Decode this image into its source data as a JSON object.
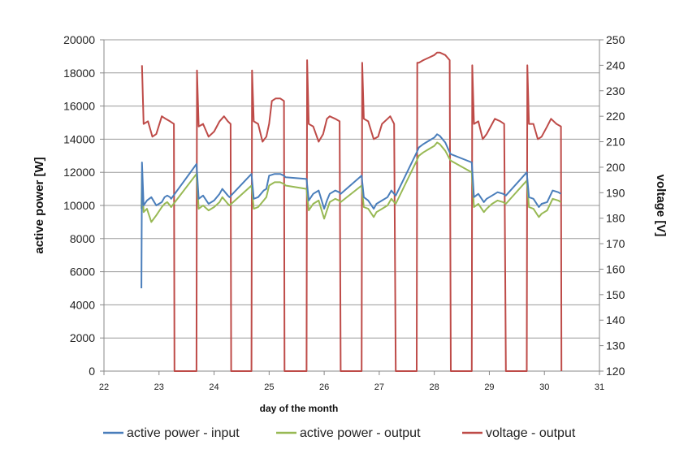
{
  "chart_data": {
    "type": "line",
    "title": "",
    "xlabel": "day of the month",
    "ylabel_left": "active power [W]",
    "ylabel_right": "voltage [V]",
    "xlim": [
      22,
      31
    ],
    "ylim_left": [
      0,
      20000
    ],
    "ylim_right": [
      120,
      250
    ],
    "x_ticks": [
      "22",
      "23",
      "24",
      "25",
      "26",
      "27",
      "28",
      "29",
      "30",
      "31"
    ],
    "y_ticks_left": [
      "0",
      "2000",
      "4000",
      "6000",
      "8000",
      "10000",
      "12000",
      "14000",
      "16000",
      "18000",
      "20000"
    ],
    "y_ticks_right": [
      "120",
      "130",
      "140",
      "150",
      "160",
      "170",
      "180",
      "190",
      "200",
      "210",
      "220",
      "230",
      "240",
      "250"
    ],
    "grid": "horizontal",
    "legend_position": "bottom",
    "series": [
      {
        "name": "active power - input",
        "color": "#4a7ebb",
        "axis": "left",
        "points": [
          [
            22.68,
            5000
          ],
          [
            22.69,
            12600
          ],
          [
            22.72,
            10000
          ],
          [
            22.78,
            10300
          ],
          [
            22.86,
            10500
          ],
          [
            22.95,
            10000
          ],
          [
            23.05,
            10200
          ],
          [
            23.1,
            10500
          ],
          [
            23.15,
            10600
          ],
          [
            23.2,
            10500
          ],
          [
            23.22,
            10400
          ],
          [
            23.68,
            12500
          ],
          [
            23.72,
            10400
          ],
          [
            23.8,
            10600
          ],
          [
            23.9,
            10100
          ],
          [
            24.0,
            10300
          ],
          [
            24.1,
            10700
          ],
          [
            24.15,
            11000
          ],
          [
            24.2,
            10800
          ],
          [
            24.25,
            10600
          ],
          [
            24.28,
            10500
          ],
          [
            24.68,
            11900
          ],
          [
            24.72,
            10400
          ],
          [
            24.8,
            10500
          ],
          [
            24.9,
            10900
          ],
          [
            24.95,
            11000
          ],
          [
            25.0,
            11800
          ],
          [
            25.1,
            11900
          ],
          [
            25.2,
            11900
          ],
          [
            25.27,
            11800
          ],
          [
            25.3,
            11700
          ],
          [
            25.68,
            11600
          ],
          [
            25.72,
            10300
          ],
          [
            25.8,
            10700
          ],
          [
            25.9,
            10900
          ],
          [
            26.0,
            9800
          ],
          [
            26.05,
            10300
          ],
          [
            26.1,
            10700
          ],
          [
            26.2,
            10900
          ],
          [
            26.27,
            10800
          ],
          [
            26.3,
            10700
          ],
          [
            26.68,
            11800
          ],
          [
            26.72,
            10500
          ],
          [
            26.8,
            10300
          ],
          [
            26.9,
            9800
          ],
          [
            26.95,
            10100
          ],
          [
            27.05,
            10300
          ],
          [
            27.15,
            10500
          ],
          [
            27.22,
            10900
          ],
          [
            27.27,
            10700
          ],
          [
            27.3,
            10600
          ],
          [
            27.68,
            13200
          ],
          [
            27.72,
            13500
          ],
          [
            27.8,
            13700
          ],
          [
            27.9,
            13900
          ],
          [
            28.0,
            14100
          ],
          [
            28.05,
            14300
          ],
          [
            28.1,
            14200
          ],
          [
            28.2,
            13800
          ],
          [
            28.28,
            13200
          ],
          [
            28.3,
            13100
          ],
          [
            28.68,
            12600
          ],
          [
            28.72,
            10500
          ],
          [
            28.8,
            10700
          ],
          [
            28.9,
            10200
          ],
          [
            28.95,
            10400
          ],
          [
            29.05,
            10600
          ],
          [
            29.15,
            10800
          ],
          [
            29.25,
            10700
          ],
          [
            29.3,
            10600
          ],
          [
            29.68,
            12000
          ],
          [
            29.72,
            10500
          ],
          [
            29.8,
            10400
          ],
          [
            29.9,
            9900
          ],
          [
            29.95,
            10100
          ],
          [
            30.05,
            10200
          ],
          [
            30.15,
            10900
          ],
          [
            30.25,
            10800
          ],
          [
            30.3,
            10700
          ]
        ]
      },
      {
        "name": "active power - output",
        "color": "#98b954",
        "axis": "left",
        "points": [
          [
            22.68,
            9800
          ],
          [
            22.69,
            11900
          ],
          [
            22.72,
            9600
          ],
          [
            22.78,
            9800
          ],
          [
            22.86,
            9000
          ],
          [
            22.95,
            9400
          ],
          [
            23.05,
            9900
          ],
          [
            23.1,
            10100
          ],
          [
            23.15,
            10200
          ],
          [
            23.2,
            10000
          ],
          [
            23.22,
            9900
          ],
          [
            23.68,
            11900
          ],
          [
            23.72,
            9800
          ],
          [
            23.8,
            10000
          ],
          [
            23.9,
            9700
          ],
          [
            24.0,
            9900
          ],
          [
            24.1,
            10200
          ],
          [
            24.15,
            10500
          ],
          [
            24.2,
            10300
          ],
          [
            24.25,
            10100
          ],
          [
            24.28,
            10000
          ],
          [
            24.68,
            11200
          ],
          [
            24.72,
            9800
          ],
          [
            24.8,
            9900
          ],
          [
            24.9,
            10300
          ],
          [
            24.95,
            10500
          ],
          [
            25.0,
            11200
          ],
          [
            25.1,
            11400
          ],
          [
            25.2,
            11400
          ],
          [
            25.27,
            11300
          ],
          [
            25.3,
            11200
          ],
          [
            25.68,
            11000
          ],
          [
            25.72,
            9700
          ],
          [
            25.8,
            10100
          ],
          [
            25.9,
            10300
          ],
          [
            26.0,
            9200
          ],
          [
            26.05,
            9700
          ],
          [
            26.1,
            10200
          ],
          [
            26.2,
            10400
          ],
          [
            26.27,
            10300
          ],
          [
            26.3,
            10200
          ],
          [
            26.68,
            11200
          ],
          [
            26.72,
            9900
          ],
          [
            26.8,
            9800
          ],
          [
            26.9,
            9300
          ],
          [
            26.95,
            9600
          ],
          [
            27.05,
            9800
          ],
          [
            27.15,
            10000
          ],
          [
            27.22,
            10400
          ],
          [
            27.27,
            10200
          ],
          [
            27.3,
            10100
          ],
          [
            27.68,
            12700
          ],
          [
            27.72,
            13000
          ],
          [
            27.8,
            13200
          ],
          [
            27.9,
            13400
          ],
          [
            28.0,
            13600
          ],
          [
            28.05,
            13800
          ],
          [
            28.1,
            13700
          ],
          [
            28.2,
            13300
          ],
          [
            28.28,
            12800
          ],
          [
            28.3,
            12700
          ],
          [
            28.68,
            12000
          ],
          [
            28.72,
            9900
          ],
          [
            28.8,
            10100
          ],
          [
            28.9,
            9600
          ],
          [
            28.95,
            9800
          ],
          [
            29.05,
            10100
          ],
          [
            29.15,
            10300
          ],
          [
            29.25,
            10200
          ],
          [
            29.3,
            10100
          ],
          [
            29.68,
            11500
          ],
          [
            29.72,
            9900
          ],
          [
            29.8,
            9800
          ],
          [
            29.9,
            9300
          ],
          [
            29.95,
            9500
          ],
          [
            30.05,
            9700
          ],
          [
            30.15,
            10400
          ],
          [
            30.25,
            10300
          ],
          [
            30.3,
            10200
          ]
        ]
      },
      {
        "name": "voltage - output",
        "color": "#be4b48",
        "axis": "right",
        "points": [
          [
            22.69,
            240
          ],
          [
            22.72,
            217
          ],
          [
            22.8,
            218
          ],
          [
            22.88,
            212
          ],
          [
            22.95,
            213
          ],
          [
            23.05,
            220
          ],
          [
            23.12,
            219
          ],
          [
            23.2,
            218
          ],
          [
            23.27,
            217
          ],
          [
            23.28,
            120
          ],
          [
            23.68,
            120
          ],
          [
            23.69,
            238
          ],
          [
            23.72,
            216
          ],
          [
            23.8,
            217
          ],
          [
            23.9,
            212
          ],
          [
            24.0,
            214
          ],
          [
            24.1,
            218
          ],
          [
            24.18,
            220
          ],
          [
            24.25,
            218
          ],
          [
            24.3,
            217
          ],
          [
            24.31,
            120
          ],
          [
            24.68,
            120
          ],
          [
            24.69,
            238
          ],
          [
            24.72,
            218
          ],
          [
            24.8,
            217
          ],
          [
            24.88,
            210
          ],
          [
            24.95,
            212
          ],
          [
            25.0,
            217
          ],
          [
            25.05,
            226
          ],
          [
            25.12,
            227
          ],
          [
            25.2,
            227
          ],
          [
            25.27,
            226
          ],
          [
            25.28,
            120
          ],
          [
            25.68,
            120
          ],
          [
            25.69,
            242
          ],
          [
            25.72,
            217
          ],
          [
            25.8,
            216
          ],
          [
            25.9,
            210
          ],
          [
            25.98,
            213
          ],
          [
            26.05,
            219
          ],
          [
            26.1,
            220
          ],
          [
            26.2,
            219
          ],
          [
            26.28,
            218
          ],
          [
            26.3,
            120
          ],
          [
            26.68,
            120
          ],
          [
            26.69,
            241
          ],
          [
            26.72,
            219
          ],
          [
            26.8,
            218
          ],
          [
            26.9,
            211
          ],
          [
            26.98,
            212
          ],
          [
            27.05,
            217
          ],
          [
            27.15,
            219
          ],
          [
            27.2,
            220
          ],
          [
            27.27,
            217
          ],
          [
            27.3,
            120
          ],
          [
            27.68,
            120
          ],
          [
            27.69,
            241
          ],
          [
            27.72,
            241
          ],
          [
            27.8,
            242
          ],
          [
            27.9,
            243
          ],
          [
            28.0,
            244
          ],
          [
            28.05,
            245
          ],
          [
            28.1,
            245
          ],
          [
            28.2,
            244
          ],
          [
            28.28,
            242
          ],
          [
            28.3,
            120
          ],
          [
            28.68,
            120
          ],
          [
            28.69,
            240
          ],
          [
            28.72,
            217
          ],
          [
            28.8,
            218
          ],
          [
            28.88,
            211
          ],
          [
            28.95,
            213
          ],
          [
            29.05,
            217
          ],
          [
            29.1,
            219
          ],
          [
            29.2,
            218
          ],
          [
            29.27,
            217
          ],
          [
            29.3,
            120
          ],
          [
            29.68,
            120
          ],
          [
            29.69,
            240
          ],
          [
            29.72,
            217
          ],
          [
            29.8,
            217
          ],
          [
            29.88,
            211
          ],
          [
            29.95,
            212
          ],
          [
            30.05,
            216
          ],
          [
            30.12,
            219
          ],
          [
            30.22,
            217
          ],
          [
            30.3,
            216
          ],
          [
            30.31,
            120
          ]
        ]
      }
    ]
  }
}
